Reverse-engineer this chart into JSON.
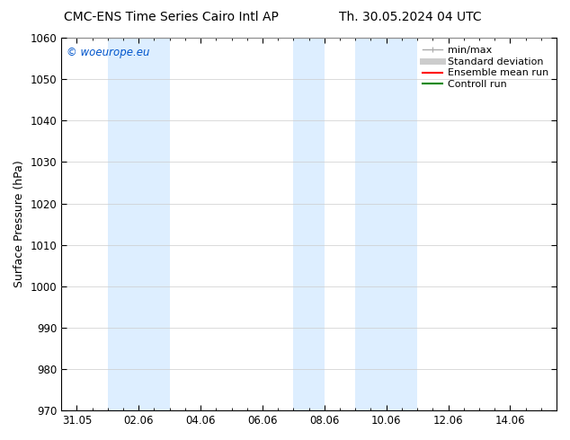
{
  "title_left": "CMC-ENS Time Series Cairo Intl AP",
  "title_right": "Th. 30.05.2024 04 UTC",
  "ylabel": "Surface Pressure (hPa)",
  "ylim": [
    970,
    1060
  ],
  "yticks": [
    970,
    980,
    990,
    1000,
    1010,
    1020,
    1030,
    1040,
    1050,
    1060
  ],
  "xtick_labels": [
    "31.05",
    "02.06",
    "04.06",
    "06.06",
    "08.06",
    "10.06",
    "12.06",
    "14.06"
  ],
  "xtick_positions": [
    0,
    2,
    4,
    6,
    8,
    10,
    12,
    14
  ],
  "xlim": [
    -0.5,
    15.5
  ],
  "shaded_bands": [
    {
      "x_start": 1.0,
      "x_end": 3.0,
      "color": "#ddeeff"
    },
    {
      "x_start": 7.0,
      "x_end": 8.0,
      "color": "#ddeeff"
    },
    {
      "x_start": 9.0,
      "x_end": 11.0,
      "color": "#ddeeff"
    }
  ],
  "watermark_text": "© woeurope.eu",
  "watermark_color": "#0055cc",
  "background_color": "#ffffff",
  "legend_items": [
    {
      "label": "min/max",
      "color": "#aaaaaa",
      "lw": 1.0,
      "style": "caps"
    },
    {
      "label": "Standard deviation",
      "color": "#cccccc",
      "lw": 5,
      "style": "solid"
    },
    {
      "label": "Ensemble mean run",
      "color": "#ff0000",
      "lw": 1.5,
      "style": "solid"
    },
    {
      "label": "Controll run",
      "color": "#008800",
      "lw": 1.5,
      "style": "solid"
    }
  ],
  "title_fontsize": 10,
  "axis_label_fontsize": 9,
  "tick_fontsize": 8.5,
  "legend_fontsize": 8,
  "figure_width": 6.34,
  "figure_height": 4.9,
  "dpi": 100
}
